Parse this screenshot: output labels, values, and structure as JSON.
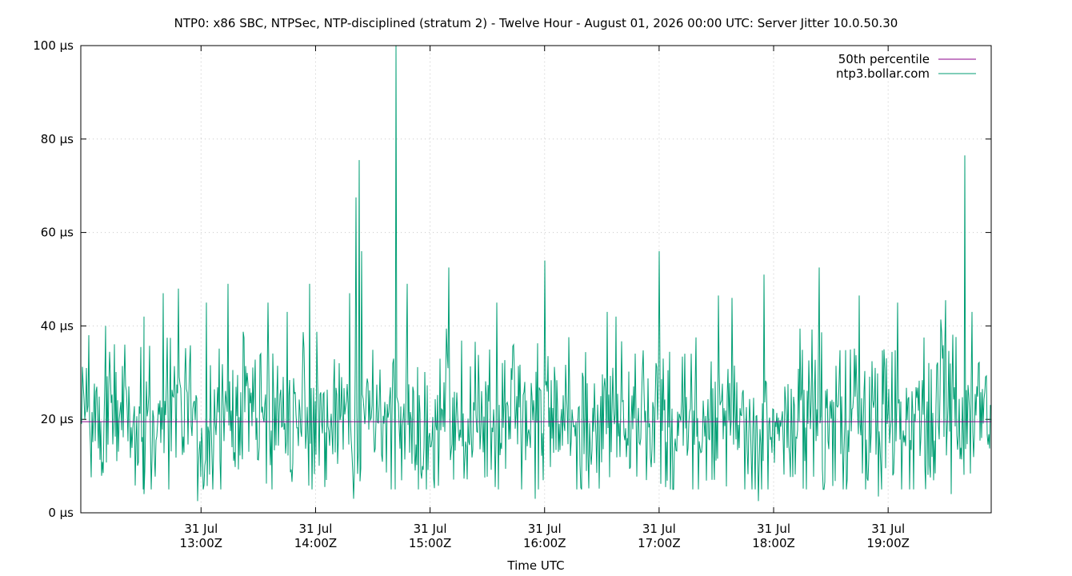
{
  "chart_data": {
    "type": "line",
    "title": "NTP0: x86 SBC, NTPSec, NTP-disciplined (stratum 2) - Twelve Hour - August 01, 2026 00:00 UTC: Server Jitter 10.0.50.30",
    "xlabel": "Time UTC",
    "ylabel": "",
    "x_range": [
      "11:57Z",
      "19:54Z"
    ],
    "ylim": [
      0,
      100
    ],
    "y_unit": "µs",
    "grid": true,
    "legend_position": "top-right",
    "y_ticks": [
      {
        "value": 0,
        "label": "0 µs"
      },
      {
        "value": 20,
        "label": "20 µs"
      },
      {
        "value": 40,
        "label": "40 µs"
      },
      {
        "value": 60,
        "label": "60 µs"
      },
      {
        "value": 80,
        "label": "80 µs"
      },
      {
        "value": 100,
        "label": "100 µs"
      }
    ],
    "x_ticks": [
      {
        "time": "13:00",
        "date": "31 Jul",
        "label": "13:00Z"
      },
      {
        "time": "14:00",
        "date": "31 Jul",
        "label": "14:00Z"
      },
      {
        "time": "15:00",
        "date": "31 Jul",
        "label": "15:00Z"
      },
      {
        "time": "16:00",
        "date": "31 Jul",
        "label": "16:00Z"
      },
      {
        "time": "17:00",
        "date": "31 Jul",
        "label": "17:00Z"
      },
      {
        "time": "18:00",
        "date": "31 Jul",
        "label": "18:00Z"
      },
      {
        "time": "19:00",
        "date": "31 Jul",
        "label": "19:00Z"
      }
    ],
    "series": [
      {
        "name": "50th percentile",
        "color": "#8b008b",
        "style": "horizontal-line",
        "value": 19.5
      },
      {
        "name": "ntp3.bollar.com",
        "color": "#009e73",
        "style": "jitter-line",
        "baseline": 20,
        "typical_range": [
          5,
          42
        ],
        "points": [
          {
            "time": "12:00",
            "value": 31
          },
          {
            "time": "12:10",
            "value": 40
          },
          {
            "time": "12:20",
            "value": 36
          },
          {
            "time": "12:30",
            "value": 42
          },
          {
            "time": "12:40",
            "value": 47
          },
          {
            "time": "12:48",
            "value": 48
          },
          {
            "time": "13:03",
            "value": 45
          },
          {
            "time": "13:14",
            "value": 49
          },
          {
            "time": "13:35",
            "value": 45
          },
          {
            "time": "13:45",
            "value": 43
          },
          {
            "time": "13:57",
            "value": 49
          },
          {
            "time": "14:18",
            "value": 47
          },
          {
            "time": "14:21",
            "value": 67.5
          },
          {
            "time": "14:23",
            "value": 75.5
          },
          {
            "time": "14:24",
            "value": 56
          },
          {
            "time": "14:42",
            "value": 100
          },
          {
            "time": "14:48",
            "value": 49
          },
          {
            "time": "15:10",
            "value": 52.5
          },
          {
            "time": "15:35",
            "value": 45
          },
          {
            "time": "16:00",
            "value": 54
          },
          {
            "time": "16:33",
            "value": 43
          },
          {
            "time": "17:00",
            "value": 56
          },
          {
            "time": "17:31",
            "value": 46.5
          },
          {
            "time": "17:38",
            "value": 46
          },
          {
            "time": "17:55",
            "value": 51
          },
          {
            "time": "18:24",
            "value": 52.5
          },
          {
            "time": "18:45",
            "value": 46.5
          },
          {
            "time": "19:05",
            "value": 45
          },
          {
            "time": "19:30",
            "value": 45.5
          },
          {
            "time": "19:40",
            "value": 76.5
          },
          {
            "time": "19:44",
            "value": 43
          },
          {
            "time": "12:30",
            "value": 4
          },
          {
            "time": "12:58",
            "value": 2.5
          },
          {
            "time": "14:20",
            "value": 3
          },
          {
            "time": "15:55",
            "value": 3
          },
          {
            "time": "17:52",
            "value": 2.5
          },
          {
            "time": "18:55",
            "value": 3.5
          },
          {
            "time": "19:33",
            "value": 4
          }
        ]
      }
    ]
  }
}
